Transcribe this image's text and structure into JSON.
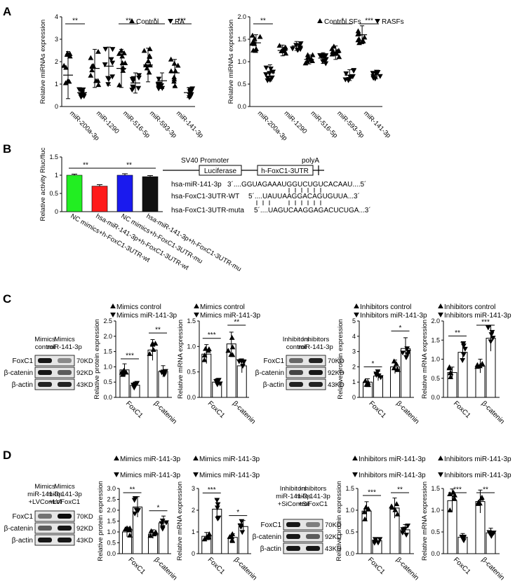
{
  "figure": {
    "panel_letters": [
      "A",
      "B",
      "C",
      "D"
    ],
    "charts_ylabel_default": "Relative miRNAs expression"
  },
  "chart_data": [
    {
      "id": "A1",
      "type": "scatter",
      "ylabel": "Relative miRNAs expression",
      "ylim": [
        0,
        4
      ],
      "yticks": [
        0,
        1,
        2,
        3,
        4
      ],
      "categories": [
        "miR-200a-3p",
        "miR-1290",
        "miR-516-5p",
        "miR-593-3p",
        "miR-141-3p"
      ],
      "series": [
        {
          "name": "Control",
          "marker": "up",
          "means": [
            1.4,
            1.7,
            1.7,
            1.85,
            1.5
          ],
          "sd": [
            1.05,
            0.85,
            0.85,
            0.75,
            0.6
          ]
        },
        {
          "name": "RA",
          "marker": "down",
          "means": [
            0.62,
            1.8,
            1.05,
            1.15,
            0.62
          ],
          "sd": [
            0.2,
            0.85,
            0.45,
            0.35,
            0.22
          ]
        }
      ],
      "significance": [
        "**",
        "",
        "**",
        "*",
        "***"
      ]
    },
    {
      "id": "A2",
      "type": "scatter",
      "ylabel": "Relative miRNAs expression",
      "ylim": [
        0,
        2
      ],
      "yticks": [
        0,
        0.5,
        1.0,
        1.5,
        2.0
      ],
      "categories": [
        "miR-200a-3p",
        "miR-1290",
        "miR-516-5p",
        "miR-593-3p",
        "miR-141-3p"
      ],
      "series": [
        {
          "name": "Control SFs",
          "marker": "up",
          "means": [
            1.42,
            1.25,
            1.05,
            1.2,
            1.6
          ],
          "sd": [
            0.18,
            0.12,
            0.1,
            0.15,
            0.2
          ]
        },
        {
          "name": "RASFs",
          "marker": "down",
          "means": [
            0.75,
            1.35,
            1.08,
            0.7,
            0.7
          ],
          "sd": [
            0.18,
            0.1,
            0.12,
            0.12,
            0.08
          ]
        }
      ],
      "significance": [
        "**",
        "",
        "",
        "*",
        "***"
      ]
    },
    {
      "id": "B",
      "type": "bar",
      "ylabel": "Relative activity Rluc/fluc",
      "ylim": [
        0,
        1.5
      ],
      "yticks": [
        0,
        0.5,
        1.0,
        1.5
      ],
      "categories": [
        "NC mimics+h-FoxC1-3UTR-wt",
        "hsa-miR-141-3p+h-FoxC1-3UTR-wt",
        "NC mimics+h-FoxC1-3UTR-mu",
        "hsa-miR-141-3p+h-FoxC1-3UTR-mu"
      ],
      "values": [
        1.0,
        0.7,
        1.0,
        0.96
      ],
      "sd": [
        0.03,
        0.04,
        0.04,
        0.03
      ],
      "colors": [
        "#22ee22",
        "#ff1a1a",
        "#1a1aee",
        "#111111"
      ],
      "significance": [
        "**",
        "**"
      ]
    },
    {
      "id": "C1",
      "type": "bar",
      "ylabel": "Relative protein expression",
      "ylim": [
        0,
        2.5
      ],
      "yticks": [
        0,
        0.5,
        1.0,
        1.5,
        2.0,
        2.5
      ],
      "categories": [
        "FoxC1",
        "β-catenin"
      ],
      "series": [
        {
          "name": "Mimics control",
          "values": [
            0.9,
            1.55
          ]
        },
        {
          "name": "Mimics miR-141-3p",
          "values": [
            0.4,
            0.85
          ]
        }
      ],
      "significance": [
        "***",
        "**"
      ]
    },
    {
      "id": "C2",
      "type": "bar",
      "ylabel": "Relative mRNA expression",
      "ylim": [
        0,
        1.5
      ],
      "yticks": [
        0,
        0.5,
        1.0,
        1.5
      ],
      "categories": [
        "FoxC1",
        "β-catenin"
      ],
      "series": [
        {
          "name": "Mimics control",
          "values": [
            0.85,
            1.05
          ]
        },
        {
          "name": "Mimics miR-141-3p",
          "values": [
            0.3,
            0.62
          ]
        }
      ],
      "significance": [
        "***",
        "**"
      ]
    },
    {
      "id": "C3",
      "type": "bar",
      "ylabel": "Relative protein expression",
      "ylim": [
        0,
        5
      ],
      "yticks": [
        0,
        1,
        2,
        3,
        4,
        5
      ],
      "categories": [
        "FoxC1",
        "β-catenin"
      ],
      "series": [
        {
          "name": "Inhibitors control",
          "values": [
            1.0,
            2.0
          ]
        },
        {
          "name": "Inhibitors miR-141-3p",
          "values": [
            1.4,
            3.2
          ]
        }
      ],
      "significance": [
        "*",
        "*"
      ]
    },
    {
      "id": "C4",
      "type": "bar",
      "ylabel": "Relative mRNA expression",
      "ylim": [
        0,
        2.0
      ],
      "yticks": [
        0,
        0.5,
        1.0,
        1.5,
        2.0
      ],
      "categories": [
        "FoxC1",
        "β-catenin"
      ],
      "series": [
        {
          "name": "Inhibitors control",
          "values": [
            0.65,
            0.82
          ]
        },
        {
          "name": "Inhibitors miR-141-3p",
          "values": [
            1.18,
            1.55
          ]
        }
      ],
      "significance": [
        "**",
        "***"
      ]
    },
    {
      "id": "D1",
      "type": "bar",
      "ylabel": "Relative protein expression",
      "ylim": [
        0,
        3
      ],
      "yticks": [
        0,
        0.5,
        1.0,
        1.5,
        2.0,
        2.5,
        3.0
      ],
      "categories": [
        "FoxC1",
        "β-catenin"
      ],
      "series": [
        {
          "name": "Mimics miR-141-3p +LVControl",
          "values": [
            1.0,
            0.9
          ]
        },
        {
          "name": "Mimics miR-141-3p +LVFoxC1",
          "values": [
            2.15,
            1.42
          ]
        }
      ],
      "significance": [
        "**",
        "*"
      ]
    },
    {
      "id": "D2",
      "type": "bar",
      "ylabel": "Relative mRNA expression",
      "ylim": [
        0,
        3
      ],
      "yticks": [
        0,
        1,
        2,
        3
      ],
      "categories": [
        "FoxC1",
        "β-catenin"
      ],
      "series": [
        {
          "name": "Mimics miR-141-3p +LVControl",
          "values": [
            0.8,
            0.75
          ]
        },
        {
          "name": "Mimics miR-141-3p +LVFoxC1",
          "values": [
            2.05,
            1.25
          ]
        }
      ],
      "significance": [
        "***",
        "*"
      ]
    },
    {
      "id": "D3",
      "type": "bar",
      "ylabel": "Relative protein expression",
      "ylim": [
        0,
        1.5
      ],
      "yticks": [
        0,
        0.5,
        1.0,
        1.5
      ],
      "categories": [
        "FoxC1",
        "β-catenin"
      ],
      "series": [
        {
          "name": "Inhibitors miR-141-3p +SiControl",
          "values": [
            0.98,
            1.05
          ]
        },
        {
          "name": "Inhibitors miR-141-3p +SiFoxC1",
          "values": [
            0.3,
            0.55
          ]
        }
      ],
      "significance": [
        "***",
        "**"
      ]
    },
    {
      "id": "D4",
      "type": "bar",
      "ylabel": "Relative mRNA expression",
      "ylim": [
        0,
        1.5
      ],
      "yticks": [
        0,
        0.5,
        1.0,
        1.5
      ],
      "categories": [
        "FoxC1",
        "β-catenin"
      ],
      "series": [
        {
          "name": "Inhibitors miR-141-3p +SiControl",
          "values": [
            1.22,
            1.2
          ]
        },
        {
          "name": "Inhibitors miR-141-3p +SiFoxC1",
          "values": [
            0.38,
            0.48
          ]
        }
      ],
      "significance": [
        "***",
        "**"
      ]
    }
  ],
  "panelB_diagram": {
    "promoter": "SV40 Promoter",
    "polyA": "polyA",
    "box1": "Luciferase",
    "box2": "h-FoxC1-3UTR",
    "seq": [
      {
        "label": "hsa-miR-141-3p",
        "seq": "3´....GGUAGAAAUGGUCUGUCACAAU....5´"
      },
      {
        "label": "hsa-FoxC1-3UTR-WT",
        "seq": "5´....UAUUAAGGACAGUGUUA...3´"
      },
      {
        "label": "hsa-FoxC1-3UTR-muta",
        "seq": "5´....UAGUCAAGGAGACUCUGA...3´"
      }
    ]
  },
  "blots": {
    "C_left": {
      "header": [
        "Mimics control",
        "Mimics miR-141-3p"
      ],
      "rows": [
        {
          "name": "FoxC1",
          "kd": "70KD"
        },
        {
          "name": "β-catenin",
          "kd": "92KD"
        },
        {
          "name": "β-actin",
          "kd": "43KD"
        }
      ]
    },
    "C_right": {
      "header": [
        "Inhibitors control",
        "Inhibitors miR-141-3p"
      ],
      "rows": [
        {
          "name": "FoxC1",
          "kd": "70KD"
        },
        {
          "name": "β-catenin",
          "kd": "92KD"
        },
        {
          "name": "β-actin",
          "kd": "43KD"
        }
      ]
    },
    "D_left": {
      "header": [
        "Mimics miR-141-3p +LVControl",
        "Mimics miR-141-3p +LVFoxC1"
      ],
      "rows": [
        {
          "name": "FoxC1",
          "kd": "70KD"
        },
        {
          "name": "β-catenin",
          "kd": "92KD"
        },
        {
          "name": "β-actin",
          "kd": "43KD"
        }
      ]
    },
    "D_right": {
      "header": [
        "Inhibitors miR-141-3p +SiControl",
        "Inhibitors miR-141-3p +SiFoxC1"
      ],
      "rows": [
        {
          "name": "FoxC1",
          "kd": "70KD"
        },
        {
          "name": "β-catenin",
          "kd": "92KD"
        },
        {
          "name": "β-actin",
          "kd": "43KD"
        }
      ]
    }
  }
}
